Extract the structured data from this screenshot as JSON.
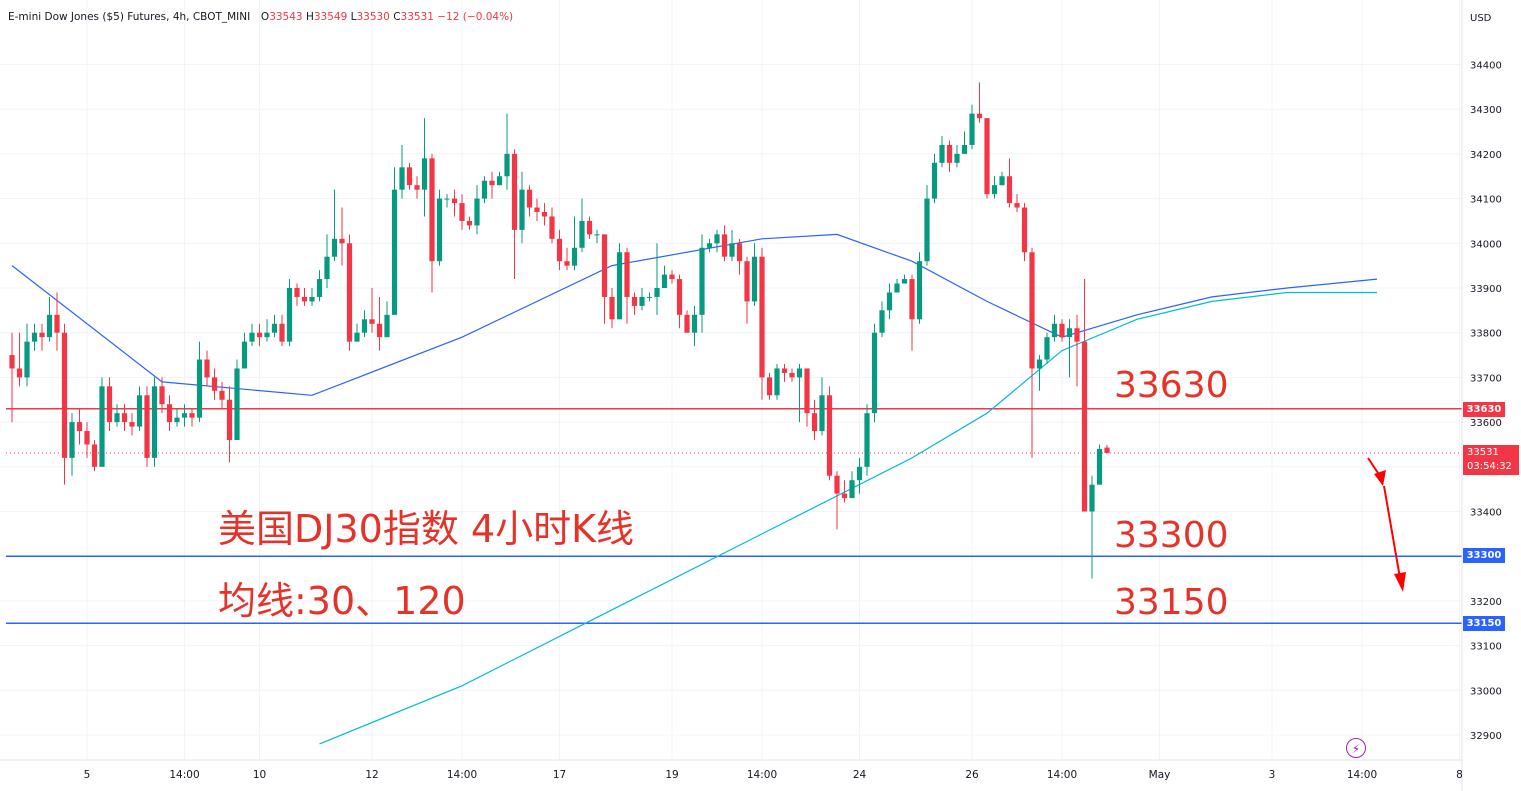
{
  "header": {
    "symbol": "E-mini Dow Jones ($5) Futures, 4h, CBOT_MINI",
    "o_label": "O",
    "o": "33543",
    "h_label": "H",
    "h": "33549",
    "l_label": "L",
    "l": "33530",
    "c_label": "C",
    "c": "33531",
    "change": "−12 (−0.04%)"
  },
  "currency": "USD",
  "annotations": {
    "title": "美国DJ30指数 4小时K线",
    "ma_note": "均线:30、120",
    "level_33630": "33630",
    "level_33300": "33300",
    "level_33150": "33150"
  },
  "price_tags": {
    "t33630": "33630",
    "t33300": "33300",
    "t33150": "33150",
    "current": "33531",
    "countdown": "03:54:32"
  },
  "colors": {
    "up": "#089981",
    "down": "#f23645",
    "ma30": "#2962ff",
    "ma120": "#00bcd4",
    "res_line": "#f23645",
    "sup_line": "#2962ff",
    "annotation": "#e5332a"
  },
  "chart_data": {
    "type": "candlestick",
    "interval": "4h",
    "ylim": [
      32850,
      34500
    ],
    "y_ticks": [
      32900,
      33000,
      33100,
      33200,
      33300,
      33400,
      33500,
      33600,
      33700,
      33800,
      33900,
      34000,
      34100,
      34200,
      34300,
      34400
    ],
    "x_ticks": [
      {
        "label": "5",
        "i": 10
      },
      {
        "label": "14:00",
        "i": 23
      },
      {
        "label": "10",
        "i": 33
      },
      {
        "label": "12",
        "i": 48
      },
      {
        "label": "14:00",
        "i": 60
      },
      {
        "label": "17",
        "i": 73
      },
      {
        "label": "19",
        "i": 88
      },
      {
        "label": "14:00",
        "i": 100
      },
      {
        "label": "24",
        "i": 113
      },
      {
        "label": "26",
        "i": 128
      },
      {
        "label": "14:00",
        "i": 140
      },
      {
        "label": "May",
        "i": 153
      },
      {
        "label": "3",
        "i": 168
      },
      {
        "label": "14:00",
        "i": 180
      },
      {
        "label": "8",
        "i": 193
      }
    ],
    "horizontal_levels": [
      33630,
      33300,
      33150
    ],
    "last_price": 33531,
    "candles": [
      [
        33750,
        33720,
        33800,
        33600
      ],
      [
        33720,
        33700,
        33800,
        33680
      ],
      [
        33700,
        33780,
        33820,
        33680
      ],
      [
        33780,
        33800,
        33820,
        33760
      ],
      [
        33800,
        33790,
        33820,
        33760
      ],
      [
        33790,
        33840,
        33880,
        33780
      ],
      [
        33840,
        33800,
        33890,
        33760
      ],
      [
        33800,
        33520,
        33820,
        33460
      ],
      [
        33520,
        33600,
        33620,
        33480
      ],
      [
        33600,
        33580,
        33630,
        33550
      ],
      [
        33580,
        33550,
        33600,
        33520
      ],
      [
        33550,
        33500,
        33560,
        33490
      ],
      [
        33500,
        33680,
        33700,
        33500
      ],
      [
        33680,
        33600,
        33700,
        33580
      ],
      [
        33600,
        33620,
        33640,
        33590
      ],
      [
        33620,
        33600,
        33640,
        33580
      ],
      [
        33600,
        33590,
        33620,
        33570
      ],
      [
        33590,
        33660,
        33680,
        33580
      ],
      [
        33660,
        33520,
        33680,
        33500
      ],
      [
        33520,
        33680,
        33700,
        33500
      ],
      [
        33680,
        33640,
        33700,
        33620
      ],
      [
        33640,
        33600,
        33660,
        33580
      ],
      [
        33600,
        33610,
        33630,
        33590
      ],
      [
        33610,
        33620,
        33640,
        33590
      ],
      [
        33620,
        33610,
        33630,
        33590
      ],
      [
        33610,
        33740,
        33780,
        33600
      ],
      [
        33740,
        33700,
        33760,
        33680
      ],
      [
        33700,
        33670,
        33720,
        33650
      ],
      [
        33670,
        33650,
        33690,
        33630
      ],
      [
        33650,
        33560,
        33680,
        33510
      ],
      [
        33560,
        33720,
        33740,
        33560
      ],
      [
        33720,
        33780,
        33800,
        33720
      ],
      [
        33780,
        33800,
        33820,
        33770
      ],
      [
        33800,
        33790,
        33820,
        33770
      ],
      [
        33790,
        33800,
        33830,
        33780
      ],
      [
        33800,
        33820,
        33840,
        33790
      ],
      [
        33820,
        33780,
        33840,
        33770
      ],
      [
        33780,
        33900,
        33920,
        33770
      ],
      [
        33900,
        33880,
        33910,
        33860
      ],
      [
        33880,
        33870,
        33900,
        33860
      ],
      [
        33870,
        33880,
        33900,
        33860
      ],
      [
        33880,
        33920,
        33940,
        33870
      ],
      [
        33920,
        33970,
        34020,
        33900
      ],
      [
        33970,
        34010,
        34120,
        33960
      ],
      [
        34010,
        34000,
        34080,
        33950
      ],
      [
        34000,
        33780,
        34020,
        33760
      ],
      [
        33780,
        33800,
        33820,
        33780
      ],
      [
        33800,
        33830,
        33850,
        33790
      ],
      [
        33830,
        33820,
        33900,
        33800
      ],
      [
        33820,
        33790,
        33880,
        33760
      ],
      [
        33790,
        33840,
        33870,
        33790
      ],
      [
        33840,
        34120,
        34170,
        33840
      ],
      [
        34120,
        34170,
        34220,
        34100
      ],
      [
        34170,
        34130,
        34180,
        34120
      ],
      [
        34130,
        34120,
        34150,
        34100
      ],
      [
        34120,
        34190,
        34280,
        34060
      ],
      [
        34190,
        33960,
        34200,
        33890
      ],
      [
        33960,
        34100,
        34120,
        33950
      ],
      [
        34100,
        34100,
        34110,
        34080
      ],
      [
        34100,
        34090,
        34120,
        34060
      ],
      [
        34090,
        34050,
        34110,
        34030
      ],
      [
        34050,
        34040,
        34060,
        34030
      ],
      [
        34040,
        34100,
        34130,
        34020
      ],
      [
        34100,
        34140,
        34150,
        34090
      ],
      [
        34140,
        34130,
        34160,
        34100
      ],
      [
        34130,
        34150,
        34160,
        34130
      ],
      [
        34150,
        34200,
        34290,
        34120
      ],
      [
        34200,
        34030,
        34210,
        33920
      ],
      [
        34030,
        34120,
        34160,
        34000
      ],
      [
        34120,
        34080,
        34130,
        34060
      ],
      [
        34080,
        34070,
        34100,
        34050
      ],
      [
        34070,
        34060,
        34090,
        34040
      ],
      [
        34060,
        34010,
        34080,
        34000
      ],
      [
        34010,
        33960,
        34030,
        33940
      ],
      [
        33960,
        33950,
        33990,
        33940
      ],
      [
        33950,
        33990,
        34060,
        33940
      ],
      [
        33990,
        34050,
        34100,
        33980
      ],
      [
        34050,
        34020,
        34060,
        34010
      ],
      [
        34020,
        34020,
        34030,
        34000
      ],
      [
        34020,
        33880,
        34000,
        33820
      ],
      [
        33880,
        33830,
        33900,
        33810
      ],
      [
        33830,
        33980,
        34000,
        33830
      ],
      [
        33980,
        33880,
        33990,
        33820
      ],
      [
        33880,
        33860,
        33890,
        33840
      ],
      [
        33860,
        33880,
        33900,
        33850
      ],
      [
        33880,
        33880,
        33890,
        33870
      ],
      [
        33880,
        33900,
        34000,
        33840
      ],
      [
        33900,
        33930,
        33950,
        33900
      ],
      [
        33930,
        33920,
        33940,
        33910
      ],
      [
        33920,
        33840,
        33930,
        33810
      ],
      [
        33840,
        33800,
        33850,
        33800
      ],
      [
        33800,
        33840,
        33860,
        33770
      ],
      [
        33840,
        33990,
        34020,
        33800
      ],
      [
        33990,
        34000,
        34010,
        33980
      ],
      [
        34000,
        34020,
        34030,
        33980
      ],
      [
        34020,
        33970,
        34040,
        33960
      ],
      [
        33970,
        34000,
        34030,
        33960
      ],
      [
        34000,
        33960,
        34010,
        33930
      ],
      [
        33960,
        33870,
        33970,
        33820
      ],
      [
        33870,
        33970,
        34000,
        33860
      ],
      [
        33970,
        33700,
        33990,
        33650
      ],
      [
        33700,
        33660,
        33710,
        33650
      ],
      [
        33660,
        33720,
        33730,
        33650
      ],
      [
        33720,
        33710,
        33730,
        33690
      ],
      [
        33710,
        33700,
        33720,
        33690
      ],
      [
        33700,
        33720,
        33730,
        33600
      ],
      [
        33720,
        33620,
        33720,
        33590
      ],
      [
        33620,
        33580,
        33650,
        33560
      ],
      [
        33580,
        33660,
        33700,
        33570
      ],
      [
        33660,
        33480,
        33680,
        33470
      ],
      [
        33480,
        33440,
        33490,
        33360
      ],
      [
        33440,
        33430,
        33470,
        33420
      ],
      [
        33430,
        33470,
        33490,
        33430
      ],
      [
        33470,
        33500,
        33520,
        33440
      ],
      [
        33500,
        33620,
        33640,
        33480
      ],
      [
        33620,
        33800,
        33820,
        33600
      ],
      [
        33800,
        33850,
        33870,
        33790
      ],
      [
        33850,
        33890,
        33910,
        33830
      ],
      [
        33890,
        33910,
        33920,
        33890
      ],
      [
        33910,
        33920,
        33930,
        33910
      ],
      [
        33920,
        33830,
        33930,
        33760
      ],
      [
        33830,
        33960,
        33980,
        33820
      ],
      [
        33960,
        34100,
        34130,
        33950
      ],
      [
        34100,
        34180,
        34200,
        34090
      ],
      [
        34180,
        34220,
        34240,
        34170
      ],
      [
        34220,
        34180,
        34230,
        34160
      ],
      [
        34180,
        34200,
        34220,
        34170
      ],
      [
        34200,
        34220,
        34250,
        34200
      ],
      [
        34220,
        34290,
        34310,
        34210
      ],
      [
        34290,
        34280,
        34360,
        34270
      ],
      [
        34280,
        34110,
        34280,
        34100
      ],
      [
        34110,
        34130,
        34150,
        34100
      ],
      [
        34130,
        34150,
        34160,
        34130
      ],
      [
        34150,
        34090,
        34190,
        34080
      ],
      [
        34090,
        34080,
        34110,
        34070
      ],
      [
        34080,
        33980,
        34090,
        33960
      ],
      [
        33980,
        33720,
        33990,
        33520
      ],
      [
        33720,
        33740,
        33750,
        33670
      ],
      [
        33740,
        33790,
        33800,
        33730
      ],
      [
        33790,
        33820,
        33840,
        33780
      ],
      [
        33820,
        33790,
        33830,
        33780
      ],
      [
        33790,
        33810,
        33830,
        33700
      ],
      [
        33810,
        33780,
        33840,
        33680
      ],
      [
        33780,
        33400,
        33920,
        33400
      ],
      [
        33400,
        33460,
        33480,
        33250
      ],
      [
        33460,
        33540,
        33550,
        33460
      ],
      [
        33543,
        33531,
        33549,
        33530
      ]
    ],
    "ma30": [
      [
        0,
        33950
      ],
      [
        20,
        33690
      ],
      [
        40,
        33660
      ],
      [
        60,
        33790
      ],
      [
        80,
        33950
      ],
      [
        100,
        34010
      ],
      [
        110,
        34020
      ],
      [
        120,
        33960
      ],
      [
        130,
        33870
      ],
      [
        140,
        33790
      ],
      [
        150,
        33840
      ],
      [
        160,
        33880
      ],
      [
        170,
        33900
      ],
      [
        182,
        33920
      ]
    ],
    "ma120": [
      [
        41,
        32880
      ],
      [
        60,
        33010
      ],
      [
        80,
        33180
      ],
      [
        100,
        33350
      ],
      [
        120,
        33520
      ],
      [
        130,
        33620
      ],
      [
        140,
        33760
      ],
      [
        150,
        33830
      ],
      [
        160,
        33870
      ],
      [
        170,
        33890
      ],
      [
        182,
        33890
      ]
    ]
  }
}
